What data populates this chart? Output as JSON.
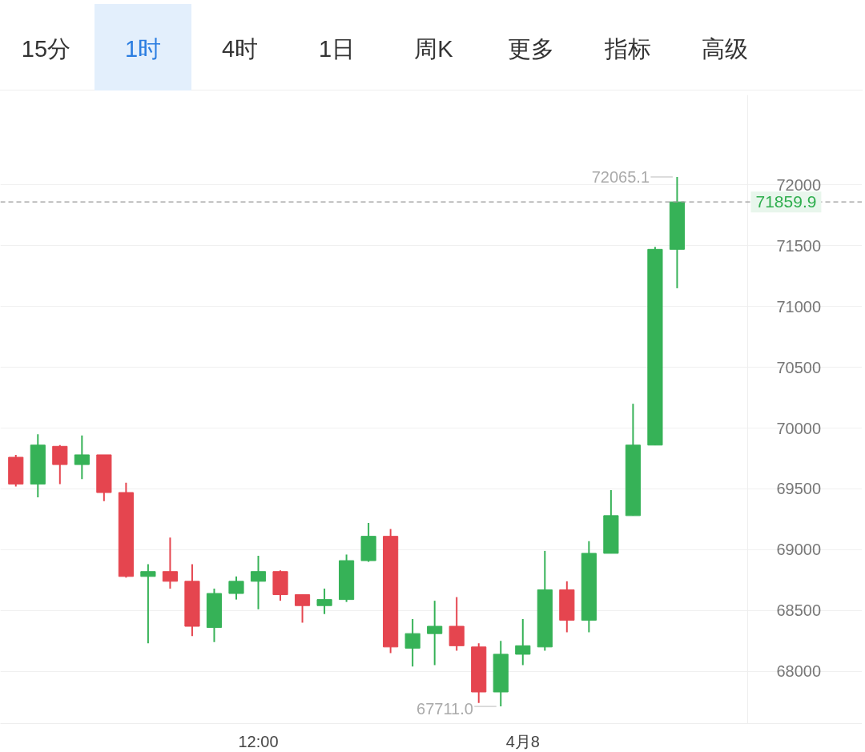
{
  "chart_data": {
    "type": "candlestick",
    "categories": [
      null,
      null,
      null,
      null,
      null,
      null,
      null,
      null,
      null,
      null,
      null,
      "12:00",
      null,
      null,
      null,
      null,
      null,
      null,
      null,
      null,
      null,
      null,
      null,
      "4月8",
      null,
      null,
      null,
      null,
      null,
      null,
      null
    ],
    "ohlc": [
      [
        69760,
        69780,
        69520,
        69540
      ],
      [
        69540,
        69950,
        69430,
        69860
      ],
      [
        69850,
        69860,
        69540,
        69700
      ],
      [
        69700,
        69940,
        69580,
        69780
      ],
      [
        69780,
        69780,
        69400,
        69470
      ],
      [
        69470,
        69550,
        68770,
        68780
      ],
      [
        68780,
        68880,
        68230,
        68820
      ],
      [
        68820,
        69100,
        68680,
        68740
      ],
      [
        68740,
        68880,
        68290,
        68370
      ],
      [
        68360,
        68680,
        68240,
        68640
      ],
      [
        68640,
        68780,
        68590,
        68740
      ],
      [
        68740,
        68950,
        68510,
        68820
      ],
      [
        68820,
        68830,
        68580,
        68630
      ],
      [
        68630,
        68630,
        68400,
        68540
      ],
      [
        68540,
        68680,
        68470,
        68590
      ],
      [
        68590,
        68960,
        68570,
        68910
      ],
      [
        68910,
        69220,
        68900,
        69110
      ],
      [
        69110,
        69170,
        68150,
        68200
      ],
      [
        68190,
        68430,
        68040,
        68310
      ],
      [
        68310,
        68580,
        68050,
        68370
      ],
      [
        68370,
        68610,
        68170,
        68210
      ],
      [
        68200,
        68230,
        67740,
        67830
      ],
      [
        67830,
        68250,
        67711.0,
        68140
      ],
      [
        68140,
        68430,
        68050,
        68210
      ],
      [
        68200,
        68990,
        68170,
        68670
      ],
      [
        68670,
        68740,
        68320,
        68420
      ],
      [
        68420,
        69070,
        68320,
        68970
      ],
      [
        68970,
        69490,
        68970,
        69280
      ],
      [
        69280,
        70200,
        69280,
        69860
      ],
      [
        69860,
        71490,
        69860,
        71470
      ],
      [
        71470,
        72065.1,
        71150,
        71859.9
      ]
    ],
    "colors": [
      "#e5454f",
      "#36b257",
      "#e5454f",
      "#36b257",
      "#e5454f",
      "#e5454f",
      "#36b257",
      "#e5454f",
      "#e5454f",
      "#36b257",
      "#36b257",
      "#36b257",
      "#e5454f",
      "#e5454f",
      "#36b257",
      "#36b257",
      "#36b257",
      "#e5454f",
      "#36b257",
      "#36b257",
      "#e5454f",
      "#e5454f",
      "#36b257",
      "#36b257",
      "#36b257",
      "#e5454f",
      "#36b257",
      "#36b257",
      "#36b257",
      "#36b257",
      "#36b257"
    ],
    "ylim": [
      67570,
      72740
    ],
    "yticks": [
      68000,
      68500,
      69000,
      69500,
      70000,
      70500,
      71000,
      71500,
      72000
    ],
    "grid": "y",
    "ref_lines": [
      {
        "axis": "y",
        "value": 71859.9,
        "label": "71859.9",
        "line_style": "dashed"
      }
    ],
    "annotations": [
      "72065.1",
      "67711.0",
      "15分",
      "1时",
      "4时",
      "1日",
      "周K",
      "更多",
      "指标",
      "高级"
    ]
  }
}
